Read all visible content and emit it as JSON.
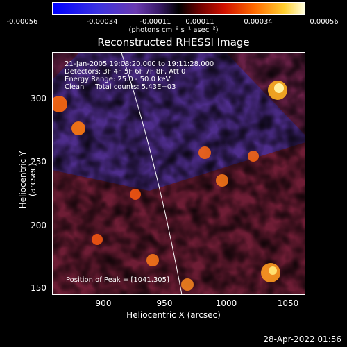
{
  "colorbar": {
    "ticks": [
      "-0.00056",
      "-0.00034",
      "-0.00011",
      "0.00011",
      "0.00034",
      "0.00056"
    ],
    "units": "(photons cm⁻² s⁻¹ asec⁻²)"
  },
  "title": "Reconstructed RHESSI Image",
  "info": {
    "line1": "21-Jan-2005 19:08:20.000 to 19:11:28.000",
    "line2": "Detectors: 3F 4F 5F 6F 7F 8F, Att 0",
    "line3": "Energy Range: 25.0 - 50.0 keV",
    "line4": "Clean     Total counts: 5.43E+03"
  },
  "peak": "Position of Peak = [1041,305]",
  "axes": {
    "xlabel": "Heliocentric X (arcsec)",
    "ylabel": "Heliocentric Y (arcsec)",
    "xticks": [
      "900",
      "950",
      "1000",
      "1050"
    ],
    "yticks": [
      "150",
      "200",
      "250",
      "300"
    ],
    "xrange": [
      864,
      1052
    ],
    "yrange": [
      144,
      323
    ]
  },
  "timestamp": "28-Apr-2022 01:56"
}
